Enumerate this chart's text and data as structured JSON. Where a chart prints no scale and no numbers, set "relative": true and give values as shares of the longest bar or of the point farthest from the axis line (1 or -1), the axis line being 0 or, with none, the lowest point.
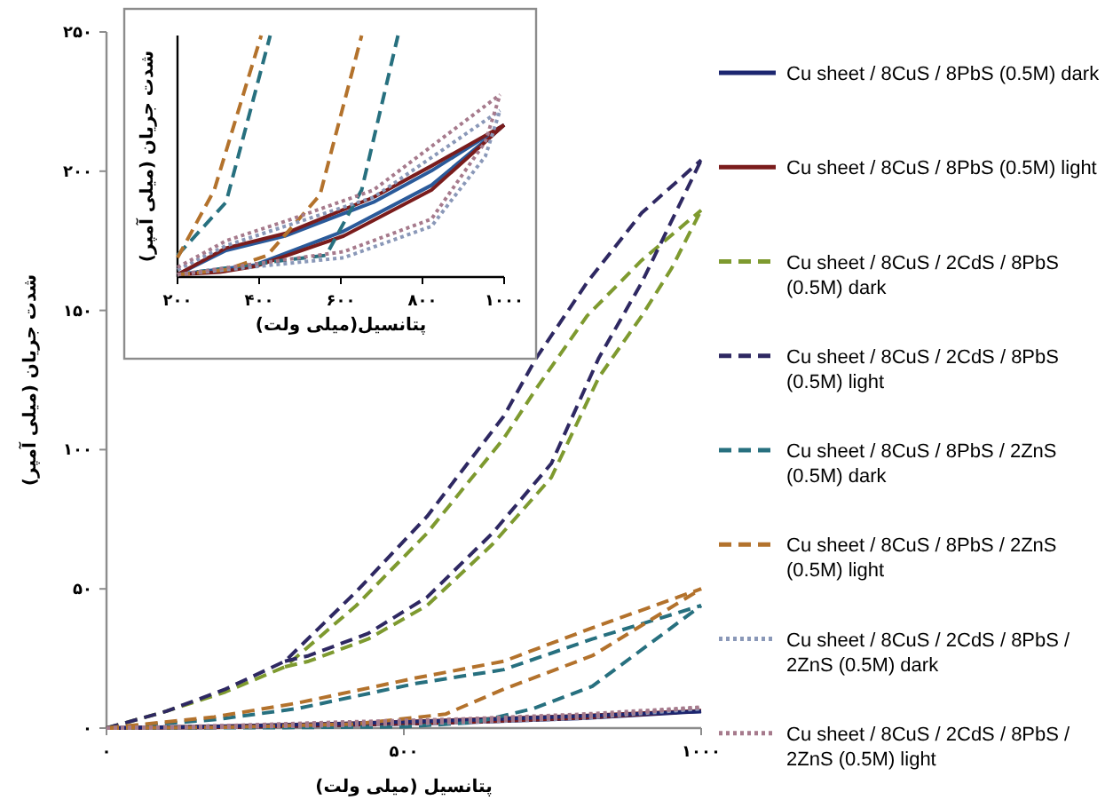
{
  "chart_data": [
    {
      "type": "line",
      "xlabel": "پتانسیل (میلی ولت)",
      "ylabel": "شدت جریان (میلی آمپر)",
      "xlim": [
        0,
        1000
      ],
      "ylim": [
        0,
        250
      ],
      "xticks": [
        {
          "value": 0,
          "label": "۰"
        },
        {
          "value": 500,
          "label": "۵۰۰"
        },
        {
          "value": 1000,
          "label": "۱۰۰۰"
        }
      ],
      "yticks": [
        {
          "value": 0,
          "label": "۰"
        },
        {
          "value": 50,
          "label": "۵۰"
        },
        {
          "value": 100,
          "label": "۱۰۰"
        },
        {
          "value": 150,
          "label": "۱۵۰"
        },
        {
          "value": 200,
          "label": "۲۰۰"
        },
        {
          "value": 250,
          "label": "۲۵۰"
        }
      ],
      "legend": "right",
      "marker": "none",
      "grid": false,
      "series": [
        {
          "name": "Cu sheet / 8CuS / 8PbS (0.5M) dark",
          "color": "#1c2670",
          "line_style": "solid",
          "x": [
            0,
            200,
            400,
            600,
            800,
            1000
          ],
          "values": [
            0,
            0.3,
            1,
            2,
            3.5,
            6
          ]
        },
        {
          "name": "Cu sheet / 8CuS / 8PbS (0.5M) light",
          "color": "#7a1c1c",
          "line_style": "solid",
          "x": [
            0,
            200,
            400,
            600,
            800,
            1000
          ],
          "values": [
            0,
            0.3,
            1.1,
            2.1,
            3.7,
            6.2
          ]
        },
        {
          "color": "#7a1c1c",
          "line_style": "solid",
          "x": [
            0,
            200,
            400,
            600,
            800,
            1000
          ],
          "values": [
            0,
            0.7,
            1.7,
            3,
            4.5,
            6.2
          ]
        },
        {
          "name": "Cu sheet / 8CuS / 2CdS / 8PbS (0.5M) dark",
          "color": "#7e9a2f",
          "line_style": "dashed",
          "x": [
            0,
            100,
            200,
            300,
            420,
            539,
            668,
            723,
            808,
            900,
            1000
          ],
          "values": [
            0,
            6,
            13,
            22,
            44,
            70,
            104,
            122,
            148,
            168,
            186
          ]
        },
        {
          "color": "#7e9a2f",
          "line_style": "dashed",
          "x": [
            300,
            340,
            440,
            539,
            649,
            748,
            828,
            900,
            950,
            1000
          ],
          "values": [
            22,
            24,
            32,
            44,
            66,
            90,
            126,
            148,
            165,
            186
          ]
        },
        {
          "name": "Cu sheet / 8CuS / 2CdS / 8PbS (0.5M) light",
          "color": "#2e2862",
          "line_style": "dashed",
          "x": [
            0,
            100,
            200,
            300,
            420,
            539,
            668,
            723,
            808,
            900,
            1000
          ],
          "values": [
            0,
            6,
            14,
            24,
            49,
            76,
            112,
            133,
            160,
            185,
            204
          ]
        },
        {
          "color": "#2e2862",
          "line_style": "dashed",
          "x": [
            300,
            340,
            440,
            539,
            649,
            748,
            828,
            900,
            950,
            1000
          ],
          "values": [
            24,
            26,
            34,
            47,
            70,
            95,
            133,
            160,
            182,
            204
          ]
        },
        {
          "name": "Cu sheet / 8CuS / 8PbS / 2ZnS  (0.5M) dark",
          "color": "#27707f",
          "line_style": "dashed",
          "x": [
            0,
            181,
            321,
            520,
            668,
            817,
            1000
          ],
          "values": [
            0,
            3,
            7,
            16,
            21,
            32,
            44
          ]
        },
        {
          "color": "#27707f",
          "line_style": "dashed",
          "x": [
            0,
            300,
            500,
            619,
            718,
            817,
            1000
          ],
          "values": [
            0,
            0.2,
            0.5,
            2,
            7,
            15,
            44
          ]
        },
        {
          "name": "Cu sheet / 8CuS / 8PbS / 2ZnS  (0.5M) light",
          "color": "#b3722c",
          "line_style": "dashed",
          "x": [
            0,
            181,
            321,
            520,
            668,
            817,
            1000
          ],
          "values": [
            0,
            4,
            9,
            18,
            24,
            36,
            50
          ]
        },
        {
          "color": "#b3722c",
          "line_style": "dashed",
          "x": [
            0,
            200,
            420,
            570,
            668,
            817,
            1000
          ],
          "values": [
            0,
            0.3,
            1.5,
            5,
            14,
            26,
            50
          ]
        },
        {
          "name": "Cu sheet / 8CuS / 2CdS / 8PbS / 2ZnS (0.5M) dark",
          "color": "#8a98b8",
          "line_style": "dotted",
          "x": [
            0,
            200,
            400,
            600,
            800,
            1000
          ],
          "values": [
            0,
            0.8,
            2,
            3,
            4.5,
            7
          ]
        },
        {
          "color": "#8a98b8",
          "line_style": "dotted",
          "x": [
            0,
            200,
            400,
            600,
            800,
            1000
          ],
          "values": [
            0,
            0.3,
            1,
            2,
            3.5,
            7
          ]
        },
        {
          "name": "Cu sheet / 8CuS / 2CdS / 8PbS / 2ZnS (0.5M) light",
          "color": "#a67a8c",
          "line_style": "dotted",
          "x": [
            0,
            200,
            400,
            600,
            800,
            1000
          ],
          "values": [
            0,
            0.9,
            2.2,
            3.3,
            5,
            7.5
          ]
        },
        {
          "color": "#a67a8c",
          "line_style": "dotted",
          "x": [
            0,
            200,
            400,
            600,
            800,
            1000
          ],
          "values": [
            0,
            0.3,
            1.1,
            2.2,
            3.8,
            7.5
          ]
        },
        {
          "color": "#1c2670",
          "line_style": "solid",
          "x": [
            0,
            200,
            400,
            600,
            800,
            1000
          ],
          "values": [
            0,
            0.6,
            1.6,
            2.8,
            4.3,
            6
          ]
        }
      ]
    },
    {
      "type": "line",
      "relative": true,
      "xlabel": "پتانسیل(میلی ولت)",
      "ylabel": "شدت جریان (میلی آمپر)",
      "xlim": [
        200,
        1000
      ],
      "xticks": [
        {
          "value": 200,
          "label": "۲۰۰"
        },
        {
          "value": 400,
          "label": "۴۰۰"
        },
        {
          "value": 600,
          "label": "۶۰۰"
        },
        {
          "value": 800,
          "label": "۸۰۰"
        },
        {
          "value": 1000,
          "label": "۱۰۰۰"
        }
      ],
      "tick_labels": "x",
      "marker": "none",
      "grid": false,
      "series": [
        {
          "color": "#2a5a9a",
          "line_style": "solid",
          "x": [
            200,
            319,
            463,
            680,
            822,
            1000
          ],
          "values": [
            0.01,
            0.11,
            0.17,
            0.31,
            0.44,
            0.63
          ]
        },
        {
          "color": "#2a5a9a",
          "line_style": "solid",
          "x": [
            200,
            390,
            607,
            822,
            1000
          ],
          "values": [
            0.01,
            0.05,
            0.19,
            0.38,
            0.63
          ]
        },
        {
          "color": "#7a1c1c",
          "line_style": "solid",
          "x": [
            200,
            319,
            463,
            680,
            822,
            1000
          ],
          "values": [
            0.01,
            0.12,
            0.18,
            0.33,
            0.46,
            0.63
          ]
        },
        {
          "color": "#7a1c1c",
          "line_style": "solid",
          "x": [
            200,
            303,
            390,
            607,
            822,
            1000
          ],
          "values": [
            0.01,
            0.02,
            0.044,
            0.17,
            0.36,
            0.63
          ]
        },
        {
          "color": "#27707f",
          "line_style": "dashed",
          "x": [
            200,
            319,
            427
          ],
          "values": [
            0.09,
            0.31,
            1
          ]
        },
        {
          "color": "#27707f",
          "line_style": "dashed",
          "x": [
            200,
            463,
            564,
            651,
            740
          ],
          "values": [
            0.01,
            0.07,
            0.09,
            0.36,
            1
          ]
        },
        {
          "color": "#b3722c",
          "line_style": "dashed",
          "x": [
            200,
            290,
            405
          ],
          "values": [
            0.08,
            0.36,
            1
          ]
        },
        {
          "color": "#b3722c",
          "line_style": "dashed",
          "x": [
            200,
            319,
            420,
            549,
            651
          ],
          "values": [
            0.01,
            0.03,
            0.09,
            0.34,
            1
          ]
        },
        {
          "color": "#8a98b8",
          "line_style": "dotted",
          "x": [
            200,
            319,
            463,
            680,
            990
          ],
          "values": [
            0.03,
            0.13,
            0.21,
            0.33,
            0.69
          ]
        },
        {
          "color": "#8a98b8",
          "line_style": "dotted",
          "x": [
            200,
            607,
            822,
            954,
            990
          ],
          "values": [
            0.01,
            0.08,
            0.21,
            0.5,
            0.69
          ]
        },
        {
          "color": "#a67a8c",
          "line_style": "dotted",
          "x": [
            200,
            319,
            463,
            680,
            990
          ],
          "values": [
            0.04,
            0.15,
            0.23,
            0.36,
            0.755
          ]
        },
        {
          "color": "#a67a8c",
          "line_style": "dotted",
          "x": [
            200,
            607,
            822,
            954,
            990
          ],
          "values": [
            0.01,
            0.105,
            0.24,
            0.56,
            0.755
          ]
        }
      ]
    }
  ]
}
